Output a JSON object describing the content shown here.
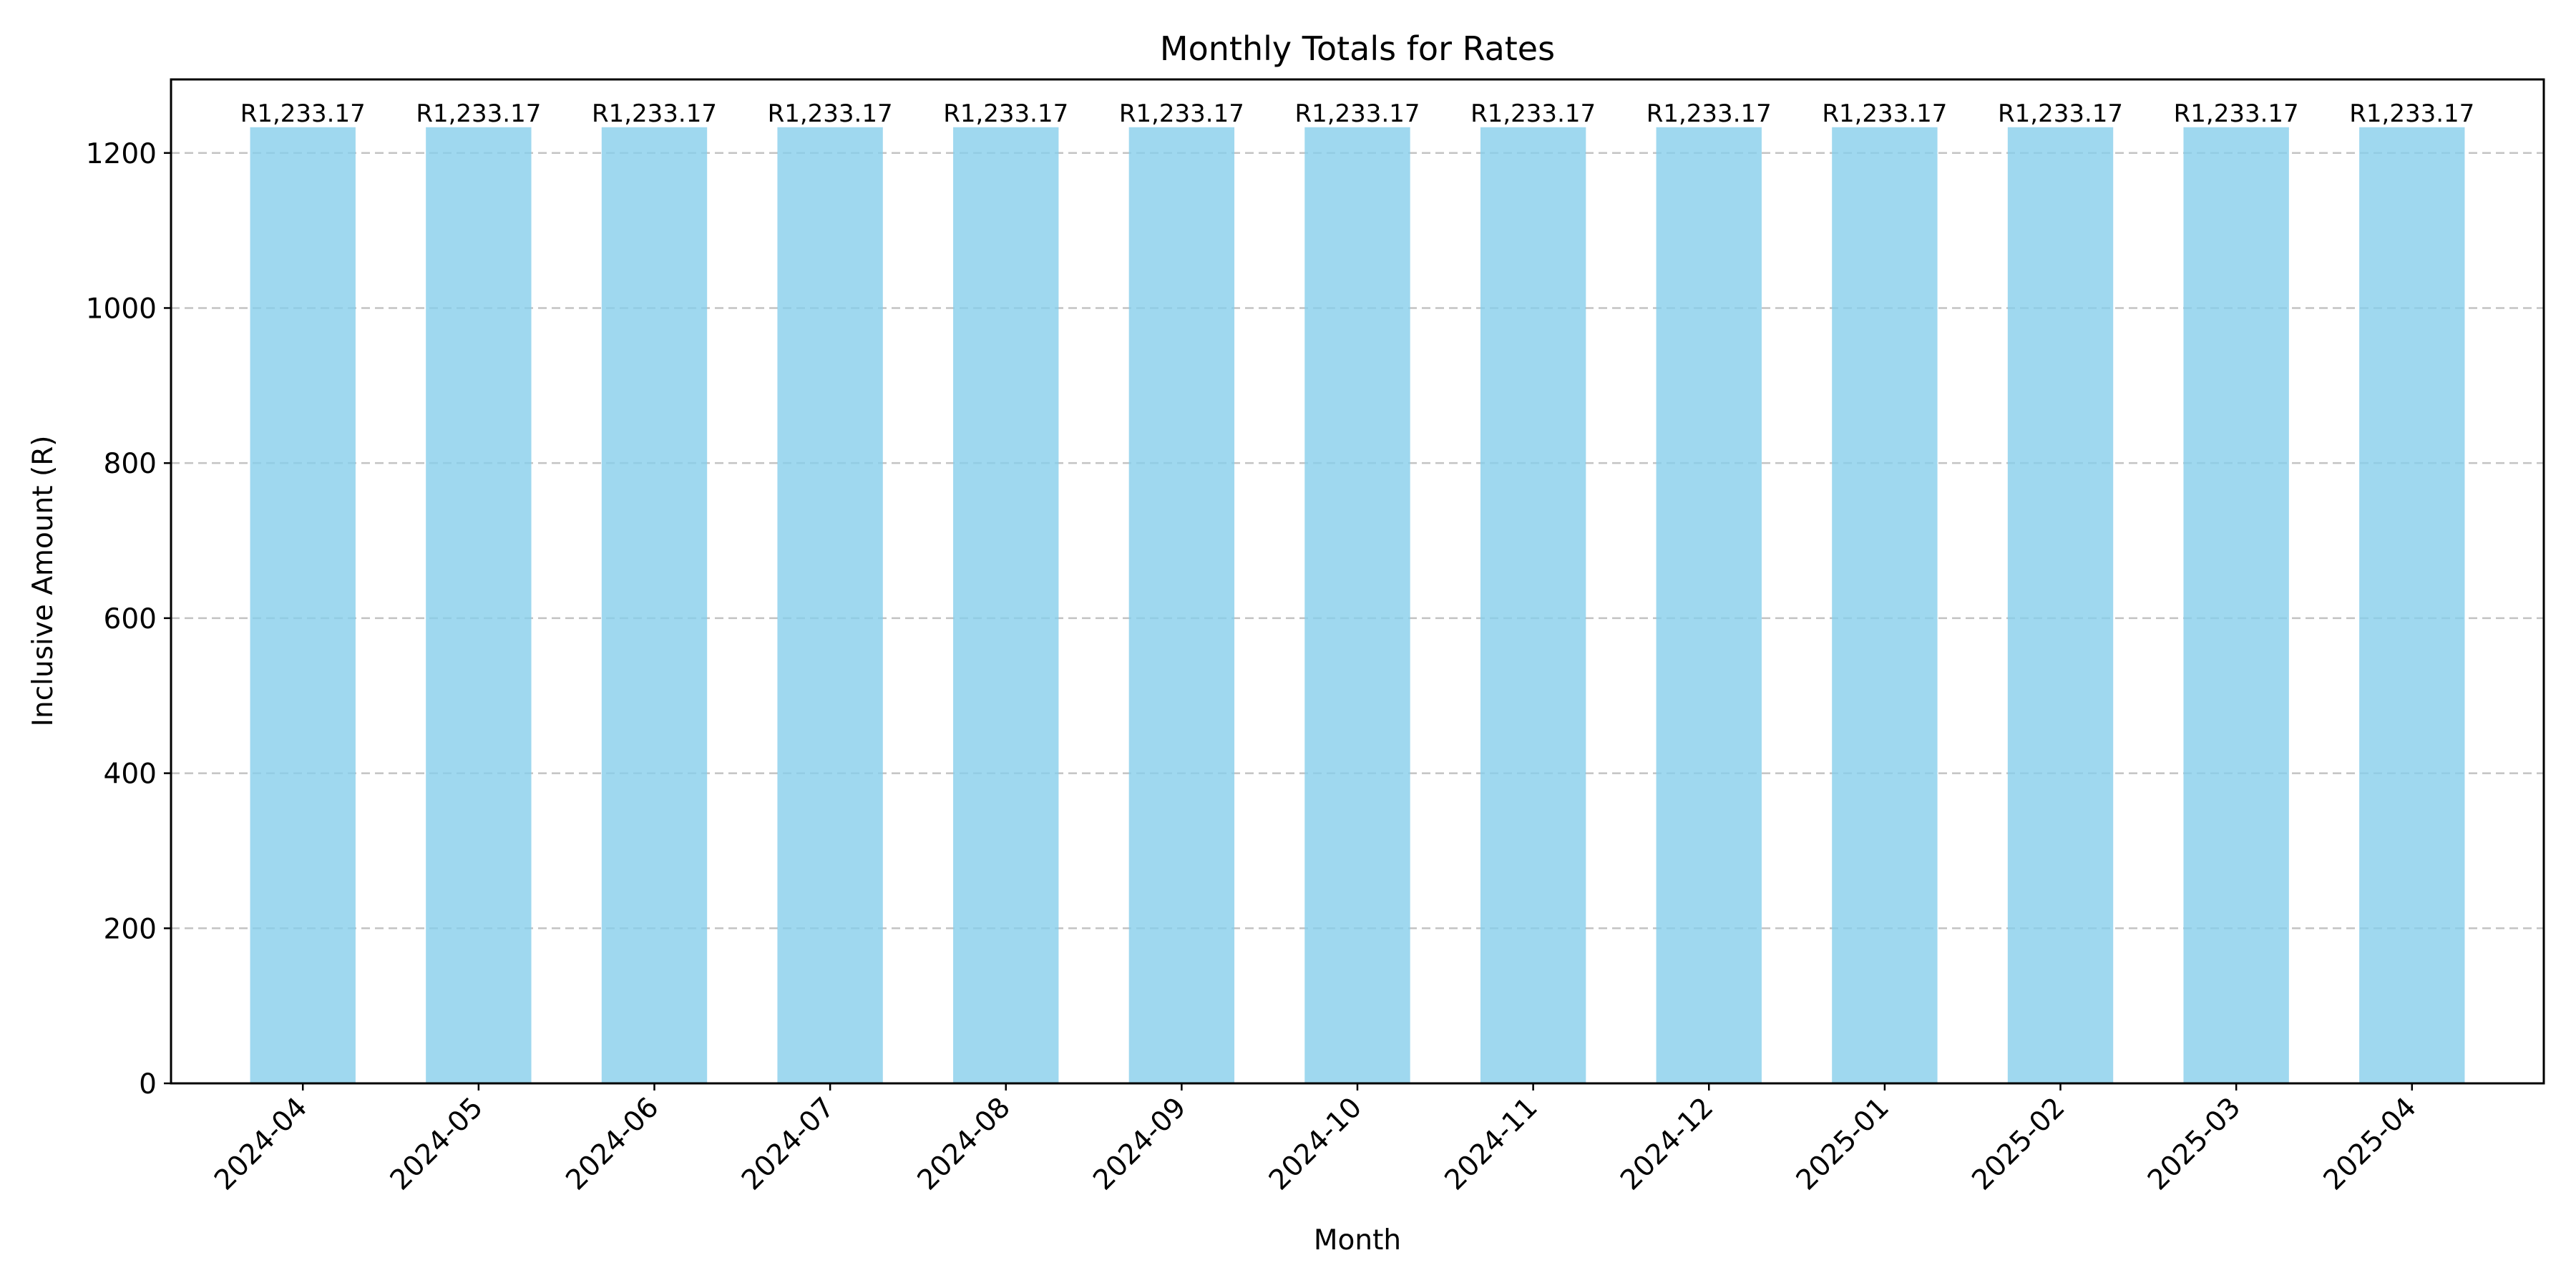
{
  "chart_data": {
    "type": "bar",
    "title": "Monthly Totals for Rates",
    "xlabel": "Month",
    "ylabel": "Inclusive Amount (R)",
    "categories": [
      "2024-04",
      "2024-05",
      "2024-06",
      "2024-07",
      "2024-08",
      "2024-09",
      "2024-10",
      "2024-11",
      "2024-12",
      "2025-01",
      "2025-02",
      "2025-03",
      "2025-04"
    ],
    "values": [
      1233.17,
      1233.17,
      1233.17,
      1233.17,
      1233.17,
      1233.17,
      1233.17,
      1233.17,
      1233.17,
      1233.17,
      1233.17,
      1233.17,
      1233.17
    ],
    "data_labels": [
      "R1,233.17",
      "R1,233.17",
      "R1,233.17",
      "R1,233.17",
      "R1,233.17",
      "R1,233.17",
      "R1,233.17",
      "R1,233.17",
      "R1,233.17",
      "R1,233.17",
      "R1,233.17",
      "R1,233.17",
      "R1,233.17"
    ],
    "ylim": [
      0,
      1294.83
    ],
    "yticks": [
      0,
      200,
      400,
      600,
      800,
      1000,
      1200
    ],
    "grid": true,
    "grid_axis": "y",
    "bar_color": "#87CEEB",
    "legend": false
  }
}
